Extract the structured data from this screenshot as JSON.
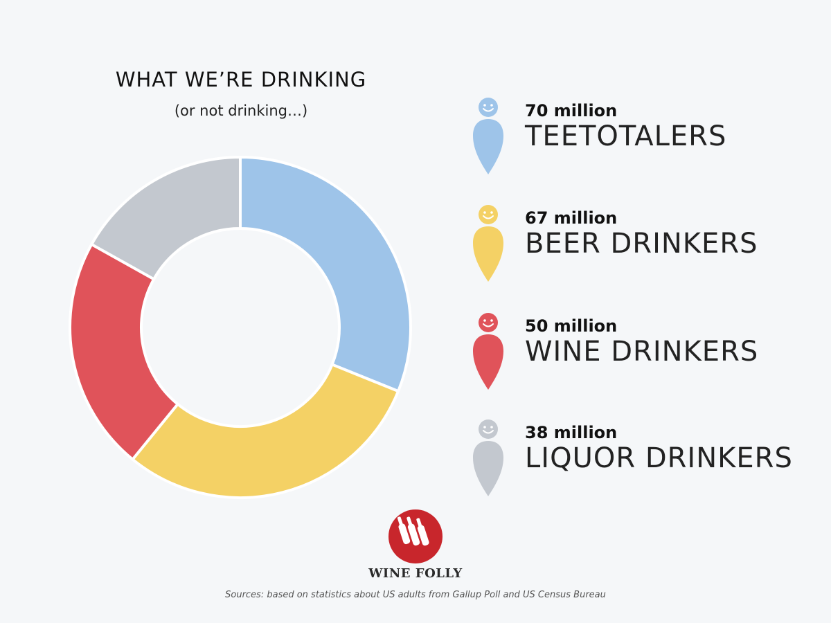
{
  "chart_data": {
    "type": "pie",
    "variant": "donut",
    "title": "WHAT WE’RE DRINKING",
    "subtitle": "(or not drinking…)",
    "categories": [
      "TEETOTALERS",
      "BEER DRINKERS",
      "WINE DRINKERS",
      "LIQUOR DRINKERS"
    ],
    "values": [
      70,
      67,
      50,
      38
    ],
    "value_labels": [
      "70 million",
      "67 million",
      "50 million",
      "38 million"
    ],
    "colors": [
      "#9ec4e9",
      "#f4d165",
      "#e0535a",
      "#c3c8cf"
    ],
    "legend_placement": "right"
  },
  "brand": {
    "name": "WINE FOLLY",
    "logo_color": "#c8262c"
  },
  "footer": {
    "sources": "Sources: based on statistics about US adults from Gallup Poll and US Census Bureau"
  },
  "legend_icon": "smiling-person-icon"
}
